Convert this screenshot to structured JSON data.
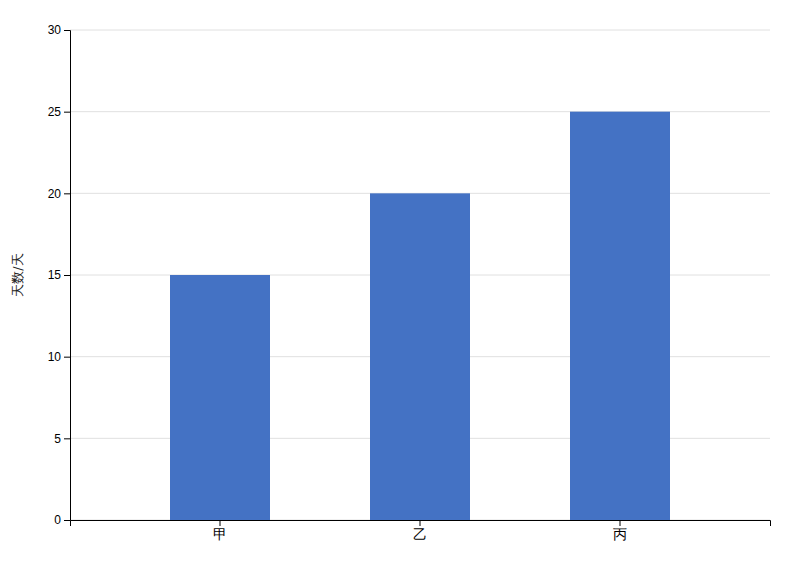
{
  "chart_data": {
    "type": "bar",
    "categories": [
      "甲",
      "乙",
      "丙"
    ],
    "values": [
      15,
      20,
      25
    ],
    "color": "#4472c4",
    "ylabel": "天数/天",
    "ylim": [
      0,
      30
    ],
    "yticks": [
      0,
      5,
      10,
      15,
      20,
      25,
      30
    ],
    "grid": true
  }
}
